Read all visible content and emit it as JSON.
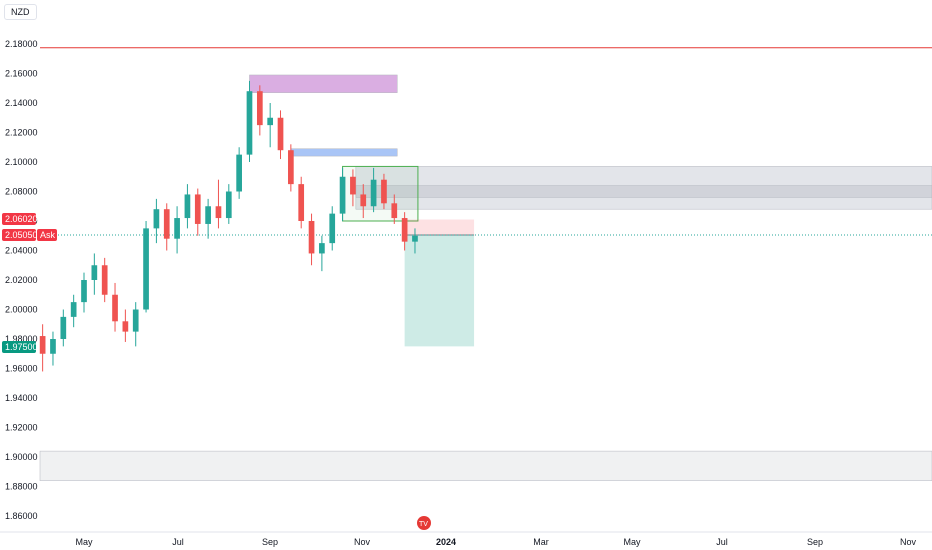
{
  "symbol": "NZD",
  "colors": {
    "up": "#26a69a",
    "down": "#ef5350",
    "resistance_line": "#e53935",
    "ask_badge": "#f23645",
    "target_badge": "#089981",
    "current_badge": "#f23645"
  },
  "price_badges": {
    "top": "2.06020",
    "current": "2.05050",
    "current_side": "Ask",
    "target": "1.97500"
  },
  "chart_data": {
    "type": "candlestick",
    "title": "",
    "ylim": [
      1.85,
      2.19
    ],
    "yticks": [
      "2.18000",
      "2.16000",
      "2.14000",
      "2.12000",
      "2.10000",
      "2.08000",
      "2.06000",
      "2.04000",
      "2.02000",
      "2.00000",
      "1.98000",
      "1.96000",
      "1.94000",
      "1.92000",
      "1.90000",
      "1.88000",
      "1.86000"
    ],
    "xticks": [
      "May",
      "Jul",
      "Sep",
      "Nov",
      "2024",
      "Mar",
      "May",
      "Jul",
      "Sep",
      "Nov"
    ],
    "x_range": [
      "2023-04-01",
      "2024-11-30"
    ],
    "grid": false,
    "candles": [
      {
        "date": "2023-04-03",
        "o": 1.982,
        "h": 1.99,
        "l": 1.958,
        "c": 1.97
      },
      {
        "date": "2023-04-10",
        "o": 1.97,
        "h": 1.985,
        "l": 1.962,
        "c": 1.98
      },
      {
        "date": "2023-04-17",
        "o": 1.98,
        "h": 2.0,
        "l": 1.975,
        "c": 1.995
      },
      {
        "date": "2023-04-24",
        "o": 1.995,
        "h": 2.01,
        "l": 1.988,
        "c": 2.005
      },
      {
        "date": "2023-05-01",
        "o": 2.005,
        "h": 2.025,
        "l": 1.998,
        "c": 2.02
      },
      {
        "date": "2023-05-08",
        "o": 2.02,
        "h": 2.038,
        "l": 2.01,
        "c": 2.03
      },
      {
        "date": "2023-05-15",
        "o": 2.03,
        "h": 2.035,
        "l": 2.005,
        "c": 2.01
      },
      {
        "date": "2023-05-22",
        "o": 2.01,
        "h": 2.018,
        "l": 1.985,
        "c": 1.992
      },
      {
        "date": "2023-05-29",
        "o": 1.992,
        "h": 2.0,
        "l": 1.978,
        "c": 1.985
      },
      {
        "date": "2023-06-05",
        "o": 1.985,
        "h": 2.005,
        "l": 1.975,
        "c": 2.0
      },
      {
        "date": "2023-06-12",
        "o": 2.0,
        "h": 2.06,
        "l": 1.998,
        "c": 2.055
      },
      {
        "date": "2023-06-19",
        "o": 2.055,
        "h": 2.075,
        "l": 2.045,
        "c": 2.068
      },
      {
        "date": "2023-06-26",
        "o": 2.068,
        "h": 2.072,
        "l": 2.04,
        "c": 2.048
      },
      {
        "date": "2023-07-03",
        "o": 2.048,
        "h": 2.07,
        "l": 2.038,
        "c": 2.062
      },
      {
        "date": "2023-07-10",
        "o": 2.062,
        "h": 2.085,
        "l": 2.055,
        "c": 2.078
      },
      {
        "date": "2023-07-17",
        "o": 2.078,
        "h": 2.082,
        "l": 2.05,
        "c": 2.058
      },
      {
        "date": "2023-07-24",
        "o": 2.058,
        "h": 2.075,
        "l": 2.048,
        "c": 2.07
      },
      {
        "date": "2023-07-31",
        "o": 2.07,
        "h": 2.088,
        "l": 2.055,
        "c": 2.062
      },
      {
        "date": "2023-08-07",
        "o": 2.062,
        "h": 2.085,
        "l": 2.058,
        "c": 2.08
      },
      {
        "date": "2023-08-14",
        "o": 2.08,
        "h": 2.11,
        "l": 2.075,
        "c": 2.105
      },
      {
        "date": "2023-08-21",
        "o": 2.105,
        "h": 2.155,
        "l": 2.1,
        "c": 2.148
      },
      {
        "date": "2023-08-28",
        "o": 2.148,
        "h": 2.152,
        "l": 2.118,
        "c": 2.125
      },
      {
        "date": "2023-09-04",
        "o": 2.125,
        "h": 2.14,
        "l": 2.11,
        "c": 2.13
      },
      {
        "date": "2023-09-11",
        "o": 2.13,
        "h": 2.135,
        "l": 2.102,
        "c": 2.108
      },
      {
        "date": "2023-09-18",
        "o": 2.108,
        "h": 2.112,
        "l": 2.08,
        "c": 2.085
      },
      {
        "date": "2023-09-25",
        "o": 2.085,
        "h": 2.09,
        "l": 2.055,
        "c": 2.06
      },
      {
        "date": "2023-10-02",
        "o": 2.06,
        "h": 2.065,
        "l": 2.03,
        "c": 2.038
      },
      {
        "date": "2023-10-09",
        "o": 2.038,
        "h": 2.05,
        "l": 2.026,
        "c": 2.045
      },
      {
        "date": "2023-10-16",
        "o": 2.045,
        "h": 2.07,
        "l": 2.04,
        "c": 2.065
      },
      {
        "date": "2023-10-23",
        "o": 2.065,
        "h": 2.096,
        "l": 2.06,
        "c": 2.09
      },
      {
        "date": "2023-10-30",
        "o": 2.09,
        "h": 2.095,
        "l": 2.07,
        "c": 2.078
      },
      {
        "date": "2023-11-06",
        "o": 2.078,
        "h": 2.085,
        "l": 2.062,
        "c": 2.07
      },
      {
        "date": "2023-11-13",
        "o": 2.07,
        "h": 2.096,
        "l": 2.066,
        "c": 2.088
      },
      {
        "date": "2023-11-20",
        "o": 2.088,
        "h": 2.092,
        "l": 2.068,
        "c": 2.072
      },
      {
        "date": "2023-11-27",
        "o": 2.072,
        "h": 2.078,
        "l": 2.058,
        "c": 2.062
      },
      {
        "date": "2023-12-04",
        "o": 2.062,
        "h": 2.066,
        "l": 2.04,
        "c": 2.046
      },
      {
        "date": "2023-12-11",
        "o": 2.046,
        "h": 2.055,
        "l": 2.038,
        "c": 2.05
      }
    ],
    "horizontal_lines": [
      {
        "price": 2.1775,
        "style": "resistance"
      },
      {
        "price": 2.0505,
        "style": "current-dotted"
      }
    ],
    "zones": [
      {
        "name": "supply-zone-purple",
        "from": "2023-08-21",
        "to": "2023-11-29",
        "y1": 2.147,
        "y2": 2.159,
        "color": "#ce93d8"
      },
      {
        "name": "supply-zone-blue",
        "from": "2023-09-18",
        "to": "2023-11-29",
        "y1": 2.104,
        "y2": 2.109,
        "color": "#6f9ef0"
      },
      {
        "name": "resistance-band-gray",
        "from": "2023-11-01",
        "to": "2024-11-30",
        "y1": 2.068,
        "y2": 2.097,
        "color": "#d1d4dc"
      },
      {
        "name": "resistance-band-core",
        "from": "2023-11-01",
        "to": "2024-11-30",
        "y1": 2.076,
        "y2": 2.084,
        "color": "#c4c7cf"
      },
      {
        "name": "support-band-gray",
        "from": "2023-04-01",
        "to": "2024-11-30",
        "y1": 1.884,
        "y2": 1.904,
        "color": "#e6e7ea"
      },
      {
        "name": "consolidation-box",
        "from": "2023-10-23",
        "to": "2023-12-13",
        "y1": 2.06,
        "y2": 2.097,
        "color": "#4caf50"
      }
    ],
    "position": {
      "entry": 2.0505,
      "stop": 2.061,
      "target": 1.975,
      "from": "2023-12-04",
      "to": "2024-01-20"
    }
  }
}
